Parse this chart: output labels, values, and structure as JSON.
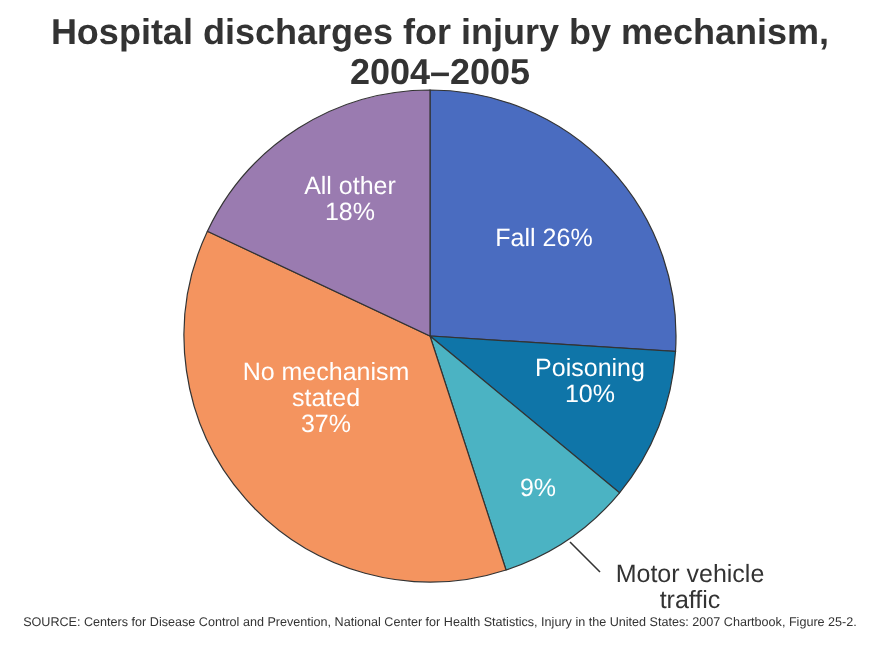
{
  "chart_data": {
    "type": "pie",
    "title": "Hospital discharges for injury by mechanism, 2004–2005",
    "categories": [
      "Fall",
      "Poisoning",
      "Motor vehicle traffic",
      "No mechanism stated",
      "All other"
    ],
    "values": [
      26,
      10,
      9,
      37,
      18
    ],
    "colors": [
      "#4a6cc0",
      "#0f75a8",
      "#4bb3c3",
      "#f4945f",
      "#9a7bb0"
    ],
    "value_labels": [
      "26%",
      "10%",
      "9%",
      "37%",
      "18%"
    ],
    "annotations": [
      "SOURCE: Centers for Disease Control and Prevention, National Center for Health Statistics, Injury in the United States: 2007 Chartbook, Figure 25-2."
    ]
  }
}
